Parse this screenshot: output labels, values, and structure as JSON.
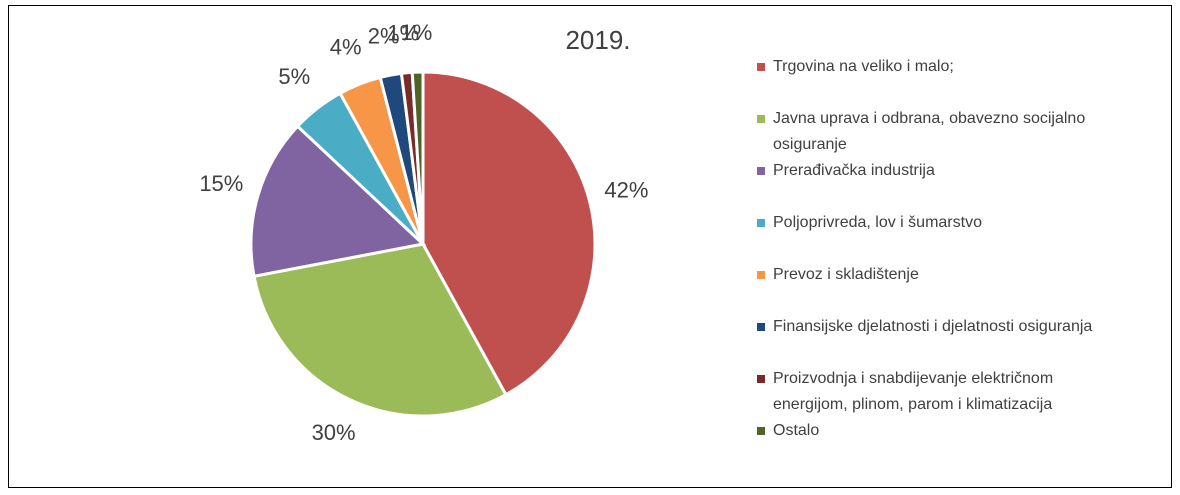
{
  "chart_data": {
    "type": "pie",
    "title": "2019.",
    "categories": [
      "Trgovina na veliko i malo;",
      "Javna uprava i odbrana, obavezno socijalno osiguranje",
      "Prerađivačka industrija",
      "Poljoprivreda, lov i šumarstvo",
      "Prevoz i skladištenje",
      "Finansijske djelatnosti i djelatnosti osiguranja",
      "Proizvodnja i snabdijevanje električnom energijom, plinom, parom i klimatizacija",
      "Ostalo"
    ],
    "values": [
      42,
      30,
      15,
      5,
      4,
      2,
      1,
      1
    ],
    "value_labels": [
      "42%",
      "30%",
      "15%",
      "5%",
      "4%",
      "2%",
      "1%",
      "1%"
    ],
    "colors": [
      "#c0504d",
      "#9bbb59",
      "#8064a2",
      "#4bacc6",
      "#f79646",
      "#1f497d",
      "#772c2a",
      "#4f6228"
    ],
    "legend": "right"
  }
}
